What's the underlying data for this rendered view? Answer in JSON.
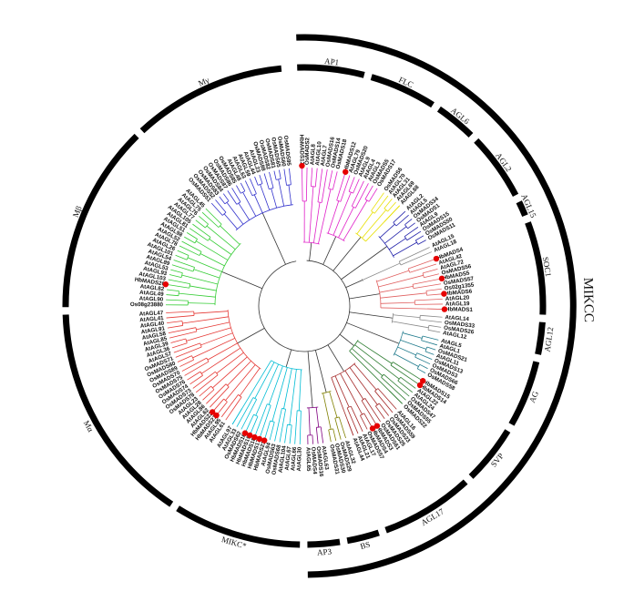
{
  "super_label": "MIKCC",
  "lower_super_label": "MIKC*",
  "clades": [
    {
      "name": "AP1",
      "color": "#e020c8",
      "leaves": [
        "HbMADS13",
        "OsMADS2",
        "AtAGL8",
        "AtAGL10",
        "AtAGL7",
        "OsMADS16",
        "OsMADS14",
        "OsMADS18"
      ]
    },
    {
      "name": "FLC",
      "color": "#e020c8",
      "leaves": [
        "HbMADS12",
        "AtAGL79",
        "OsMADS20",
        "AtAGL9",
        "AtAGL4",
        "AtAGL3",
        "OsMADS5",
        "OsMADS17"
      ]
    },
    {
      "name": "AGL6",
      "color": "#e8e000",
      "leaves": [
        "OsMADS6",
        "AtAGL70",
        "AtAGL31",
        "AtAGL69",
        "AtAGL68"
      ]
    },
    {
      "name": "AGL2",
      "color": "#2222aa",
      "leaves": [
        "AtAGL2",
        "AtAGL5",
        "OsMADS34",
        "OsMADS1",
        "AtAGL9",
        "OsMADS15",
        "OsMADS50",
        "OsMADS11"
      ]
    },
    {
      "name": "AGL15",
      "color": "#888888",
      "leaves": [
        "AtAGL15",
        "AtAGL18"
      ]
    },
    {
      "name": "SOC1",
      "color": "#e06060",
      "leaves": [
        "HbMADS4",
        "AtAGL42",
        "AtAGL72",
        "OsMADS56",
        "HbMADS5",
        "OsMADS57",
        "Os02g1355",
        "HbMADS6",
        "AtAGL20",
        "AtAGL19",
        "HbMADS1"
      ]
    },
    {
      "name": "AGL12",
      "color": "#888888",
      "leaves": [
        "AtAGL14",
        "OsMADS33",
        "OsMADS26",
        "AtAGL12"
      ]
    },
    {
      "name": "AG",
      "color": "#1f7a8c",
      "leaves": [
        "AtAGL5",
        "AtAGL1",
        "OsMADS21",
        "AtAGL11",
        "OsMADS13",
        "OsMADS3",
        "OsMADS66",
        "OsMADS58"
      ]
    },
    {
      "name": "SVP",
      "color": "#2e7d32",
      "leaves": [
        "HbMADS15",
        "HbMADS14",
        "AtAGL22",
        "AtAGL24",
        "OsMADS47",
        "OsMADS55",
        "OsMADS22"
      ]
    },
    {
      "name": "AGL17",
      "color": "#a52a2a",
      "leaves": [
        "AtAGL16",
        "OsMADS59",
        "OsMADS23",
        "OsMADS25",
        "OsMADS61",
        "HbMADS3",
        "HbMADS4",
        "OsMADS57",
        "AtAGL17",
        "AtAGL21",
        "AtAGL44"
      ]
    },
    {
      "name": "BS",
      "color": "#808000",
      "leaves": [
        "AtAGL32",
        "OsMADS29",
        "OsMADS30",
        "OsMADS31"
      ]
    },
    {
      "name": "AP3",
      "color": "#800080",
      "leaves": [
        "AtAGL63",
        "OsMADS16",
        "OsMADS4",
        "AtAGL65"
      ]
    },
    {
      "name": "MIKC*",
      "color": "#00bcd4",
      "leaves": [
        "AtAGL30",
        "AtAGL66",
        "AtAGL67",
        "AtAGL104",
        "OsMADS68",
        "OsMADS63",
        "AtAGL94",
        "HbMADS23",
        "HbMADS17",
        "HbMADS18",
        "HbMADS19",
        "HbMADS16",
        "OsMADS62",
        "AtAGL33",
        "AtAGL97"
      ]
    },
    {
      "name": "Mα",
      "color": "#e53935",
      "leaves": [
        "AtAGL61",
        "AtAGL95",
        "HbMADS21",
        "HbMADS22",
        "AtAGL62",
        "AtAGL86",
        "AtAGL28",
        "AtAGL23",
        "OsMADS78",
        "OsMADS73",
        "OsMADS74",
        "OsMADS76",
        "OsMADS75",
        "OsMADS70",
        "OsMADS89",
        "OsMADS80",
        "OsMADS71",
        "AtAGL57",
        "AtAGL36",
        "AtAGL39",
        "AtAGL85",
        "AtAGL58",
        "AtAGL91",
        "AtAGL40",
        "AtAGL41",
        "AtAGL47"
      ]
    },
    {
      "name": "Mβ",
      "color": "#33cc33",
      "leaves": [
        "Os08g23880",
        "AtAGL90",
        "AtAGL49",
        "AtAGL82",
        "HbMADS20",
        "AtAGL103",
        "AtAGL93",
        "AtAGL53",
        "AtAGL89",
        "AtAGL54",
        "AtAGL101",
        "AtAGL26",
        "AtAGL78",
        "AtAGL52",
        "AtAGL98",
        "AtAGL51",
        "AtAGL81",
        "AtAGL105",
        "AtAGL77",
        "AtAGL76",
        "AtAGL75",
        "AtAGL45"
      ]
    },
    {
      "name": "Mγ",
      "color": "#3333cc",
      "leaves": [
        "OsMADS51",
        "OsMADS52",
        "OsMADS83",
        "OsMADS84",
        "OsMADS87",
        "OsMADS86",
        "OsMADS85",
        "AtAGL48",
        "AtAGL63",
        "AtAGL59",
        "AtAGL44",
        "AtAGL23",
        "OsMADS88",
        "OsMADS82",
        "OsMADS81",
        "OsMADS65",
        "OsMADS60",
        "OsMADS95"
      ]
    }
  ],
  "labelled_clades": [
    "AP1",
    "FLC",
    "AGL6",
    "AGL2",
    "AGL15",
    "SOC1",
    "AGL12",
    "AG",
    "SVP",
    "AGL17",
    "BS",
    "AP3",
    "MIKC*",
    "Mα",
    "Mβ",
    "Mγ"
  ],
  "highlight_color": "#e60000",
  "arc_color": "#000000"
}
